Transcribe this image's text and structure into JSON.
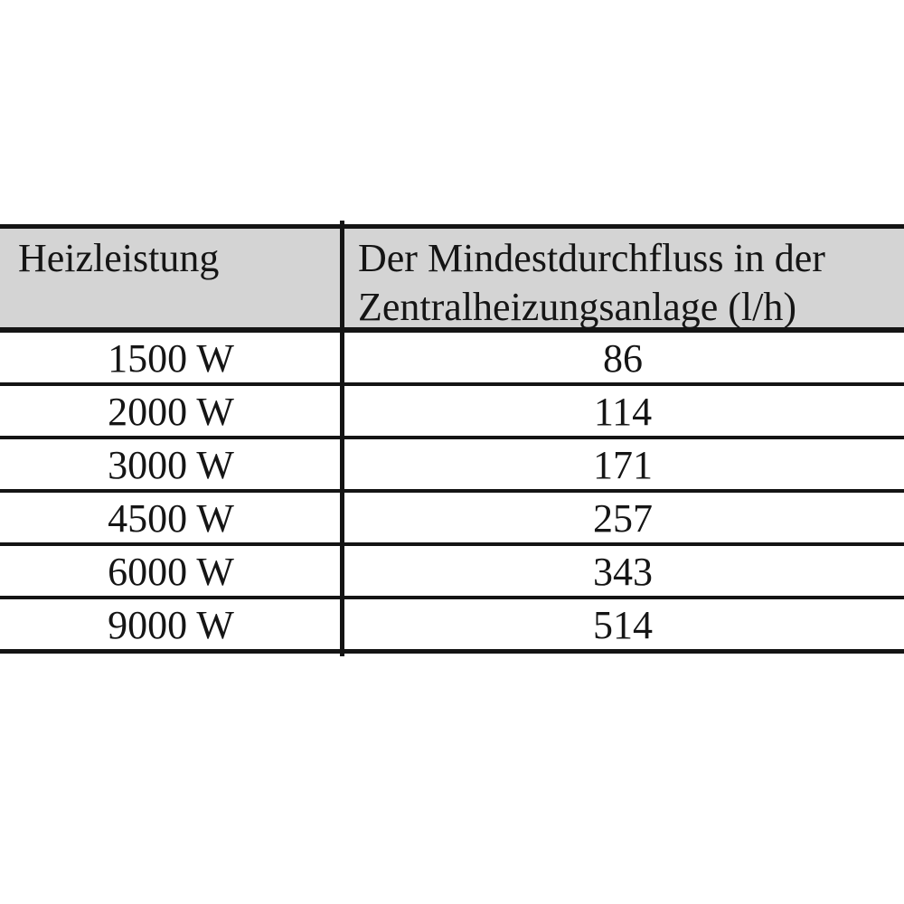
{
  "page": {
    "background_color": "#ffffff"
  },
  "table": {
    "title": "Mindestdurchfluss in der Zentralheizungsanlage",
    "colors": {
      "header_background": "#d4d4d4",
      "border": "#141414",
      "text": "#151515"
    },
    "header": {
      "col1": "Heizleistung",
      "col2_line1": "Der Mindestdurchfluss in der",
      "col2_line2": "Zentralheizungsanlage (l/h)"
    },
    "rows": [
      {
        "heizleistung": "1500 W",
        "durchfluss": "86"
      },
      {
        "heizleistung": "2000 W",
        "durchfluss": "114"
      },
      {
        "heizleistung": "3000 W",
        "durchfluss": "171"
      },
      {
        "heizleistung": "4500 W",
        "durchfluss": "257"
      },
      {
        "heizleistung": "6000 W",
        "durchfluss": "343"
      },
      {
        "heizleistung": "9000 W",
        "durchfluss": "514"
      }
    ]
  }
}
